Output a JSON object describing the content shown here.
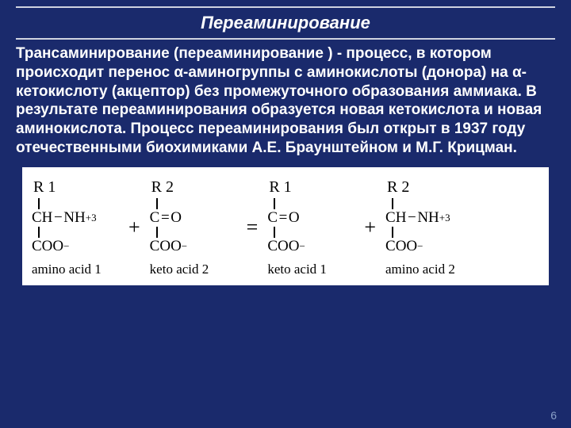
{
  "colors": {
    "background": "#1a2a6c",
    "rule": "#cfd3e0",
    "text": "#ffffff",
    "panel_bg": "#ffffff",
    "panel_text": "#000000"
  },
  "title": "Переаминирование",
  "paragraph": "Трансаминирование (переаминирование ) - процесс, в котором происходит перенос  α-аминогруппы с аминокислоты (донора) на α-кетокислоту (акцептор) без промежуточного образования аммиака. В результате переаминирования образуется новая кетокислота и новая аминокислота. Процесс переаминирования был открыт в 1937 году отечественными биохимиками А.Е. Браунштейном и М.Г. Крицман.",
  "reaction": {
    "mol1": {
      "r": "R 1",
      "line2_a": "CH",
      "line2_b": "NH",
      "line2_sup": "+",
      "line2_sub": "3",
      "coo": "COO",
      "coo_sup": "−",
      "caption": "amino acid 1"
    },
    "op1": "+",
    "mol2": {
      "r": "R 2",
      "line2_a": "C",
      "line2_b": "O",
      "coo": "COO",
      "coo_sup": "−",
      "caption": "keto acid 2"
    },
    "op2": "=",
    "mol3": {
      "r": "R 1",
      "line2_a": "C",
      "line2_b": "O",
      "coo": "COO",
      "coo_sup": "−",
      "caption": "keto acid 1"
    },
    "op3": "+",
    "mol4": {
      "r": "R 2",
      "line2_a": "CH",
      "line2_b": "NH",
      "line2_sup": "+",
      "line2_sub": "3",
      "coo": "COO",
      "coo_sup": "−",
      "caption": "amino acid 2"
    }
  },
  "page_number": "6"
}
